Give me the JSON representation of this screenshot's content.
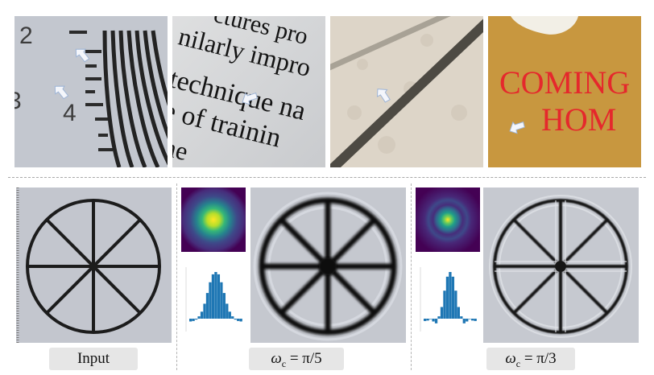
{
  "top_row": {
    "chart": {
      "labels": [
        "2",
        "4"
      ]
    },
    "text_crop": {
      "lines": [
        "ctures pro",
        "nilarly impro",
        "technique na",
        "e of trainin",
        "the"
      ]
    },
    "sign": {
      "line1": "COMING",
      "line2": "HOM"
    }
  },
  "bottom_row": {
    "captions": {
      "input": "Input",
      "cut1_symbol": "ω",
      "cut1_sub": "c",
      "cut1_rest": " = π/5",
      "cut2_symbol": "ω",
      "cut2_sub": "c",
      "cut2_rest": " = π/3"
    },
    "filter_profiles": {
      "pi_over_5": [
        -0.06,
        -0.05,
        -0.02,
        0.05,
        0.15,
        0.32,
        0.55,
        0.78,
        0.95,
        1.0,
        0.95,
        0.78,
        0.55,
        0.32,
        0.15,
        0.05,
        -0.02,
        -0.05,
        -0.06
      ],
      "pi_over_3": [
        -0.05,
        -0.04,
        0.0,
        -0.06,
        -0.1,
        0.05,
        0.25,
        0.6,
        0.9,
        1.0,
        0.9,
        0.6,
        0.25,
        0.05,
        -0.1,
        -0.06,
        0.0,
        -0.04,
        -0.05
      ]
    }
  },
  "colors": {
    "panel_bg": "#c3c7cc",
    "sign_bg": "#c8973f",
    "sign_text": "#e5282c",
    "stem": "#1f77b4",
    "kernel_dark": "#3b1258"
  }
}
